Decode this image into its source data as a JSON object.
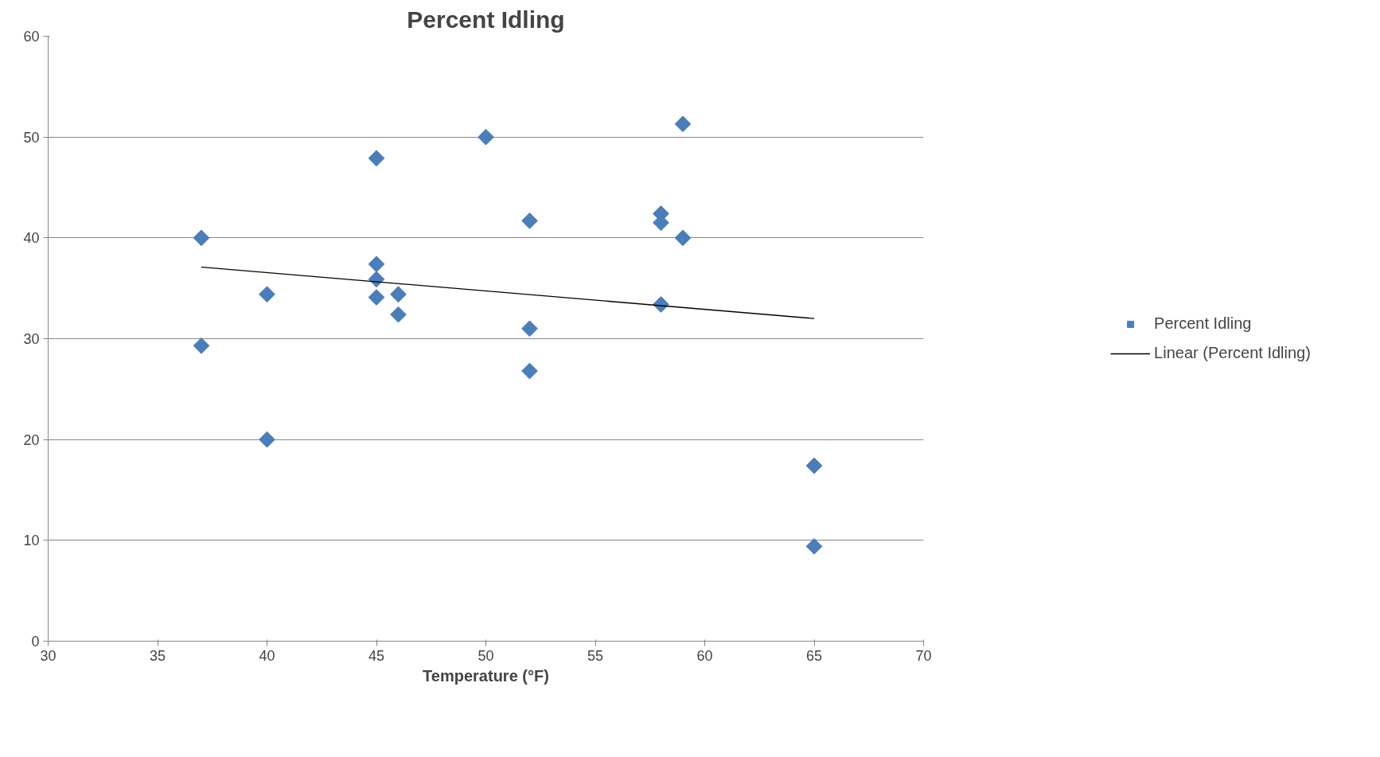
{
  "chart_data": {
    "type": "scatter",
    "title": "Percent Idling",
    "xlabel": "Temperature (°F)",
    "xlim": [
      30,
      70
    ],
    "xticks": [
      30,
      35,
      40,
      45,
      50,
      55,
      60,
      65,
      70
    ],
    "ylim": [
      0,
      60
    ],
    "yticks": [
      0,
      10,
      20,
      30,
      40,
      50,
      60
    ],
    "grid": "y",
    "legend": "right",
    "series": [
      {
        "name": "Percent Idling",
        "color": "#4a7ebb",
        "marker": "diamond",
        "x": [
          37,
          37,
          40,
          40,
          45,
          45,
          45,
          45,
          46,
          46,
          50,
          52,
          52,
          52,
          58,
          58,
          58,
          59,
          59,
          65,
          65
        ],
        "values": [
          40,
          29.3,
          34.4,
          20,
          47.9,
          37.4,
          35.9,
          34.1,
          34.4,
          32.4,
          50,
          41.7,
          31,
          26.8,
          42.4,
          41.5,
          33.4,
          51.3,
          40,
          17.4,
          9.4
        ]
      },
      {
        "name": "Linear (Percent Idling)",
        "type": "line",
        "marker": "none",
        "color": "#000000",
        "x": [
          37,
          65
        ],
        "values": [
          37.1,
          32.0
        ]
      }
    ]
  }
}
